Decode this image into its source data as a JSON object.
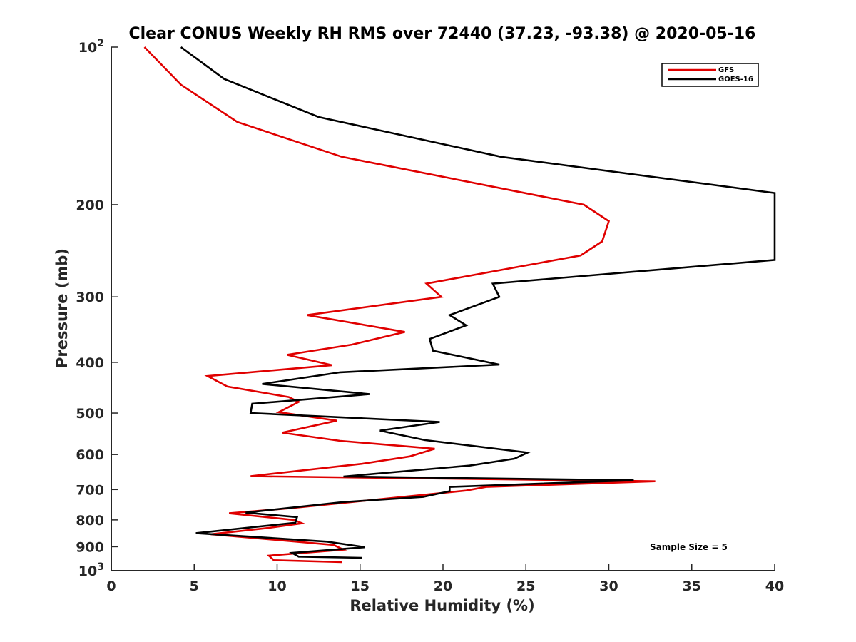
{
  "chart_data": {
    "type": "line",
    "title": "Clear CONUS Weekly RH RMS over 72440 (37.23, -93.38) @ 2020-05-16",
    "xlabel": "Relative Humidity (%)",
    "ylabel": "Pressure (mb)",
    "xlim": [
      0,
      40
    ],
    "ylim": [
      100,
      1000
    ],
    "y_scale": "log",
    "y_reversed": true,
    "grid": false,
    "legend_position": "top-right",
    "xticks": [
      "0",
      "5",
      "10",
      "15",
      "20",
      "25",
      "30",
      "35",
      "40"
    ],
    "xtick_values": [
      0,
      5,
      10,
      15,
      20,
      25,
      30,
      35,
      40
    ],
    "yticks": [
      {
        "value": 100,
        "base": "10",
        "exp": "2"
      },
      {
        "value": 200,
        "base": "200",
        "exp": ""
      },
      {
        "value": 300,
        "base": "300",
        "exp": ""
      },
      {
        "value": 400,
        "base": "400",
        "exp": ""
      },
      {
        "value": 500,
        "base": "500",
        "exp": ""
      },
      {
        "value": 600,
        "base": "600",
        "exp": ""
      },
      {
        "value": 700,
        "base": "700",
        "exp": ""
      },
      {
        "value": 800,
        "base": "800",
        "exp": ""
      },
      {
        "value": 900,
        "base": "900",
        "exp": ""
      },
      {
        "value": 1000,
        "base": "10",
        "exp": "3"
      }
    ],
    "annotation": "Sample Size = 5",
    "series": [
      {
        "name": "GFS",
        "color": "#e00000",
        "points": [
          [
            2.0,
            100
          ],
          [
            4.2,
            118
          ],
          [
            7.6,
            139
          ],
          [
            13.9,
            162
          ],
          [
            28.5,
            200
          ],
          [
            30.0,
            215
          ],
          [
            29.6,
            235
          ],
          [
            28.3,
            250
          ],
          [
            19.0,
            283
          ],
          [
            19.9,
            300
          ],
          [
            11.8,
            325
          ],
          [
            17.7,
            350
          ],
          [
            14.5,
            370
          ],
          [
            10.6,
            387
          ],
          [
            13.3,
            405
          ],
          [
            5.8,
            425
          ],
          [
            7.0,
            445
          ],
          [
            10.7,
            466
          ],
          [
            11.3,
            476
          ],
          [
            10.1,
            498
          ],
          [
            13.6,
            517
          ],
          [
            10.3,
            545
          ],
          [
            13.8,
            565
          ],
          [
            19.5,
            585
          ],
          [
            18.0,
            605
          ],
          [
            15.1,
            625
          ],
          [
            8.4,
            660
          ],
          [
            32.8,
            675
          ],
          [
            22.6,
            692
          ],
          [
            21.4,
            703
          ],
          [
            10.8,
            760
          ],
          [
            7.1,
            777
          ],
          [
            11.0,
            800
          ],
          [
            11.5,
            812
          ],
          [
            9.3,
            830
          ],
          [
            6.0,
            852
          ],
          [
            13.4,
            893
          ],
          [
            14.0,
            912
          ],
          [
            9.5,
            936
          ],
          [
            9.8,
            955
          ],
          [
            13.9,
            963
          ]
        ]
      },
      {
        "name": "GOES-16",
        "color": "#000000",
        "points": [
          [
            4.2,
            100
          ],
          [
            6.8,
            115
          ],
          [
            12.5,
            136
          ],
          [
            23.5,
            162
          ],
          [
            40.0,
            190
          ],
          [
            40.0,
            255
          ],
          [
            23.0,
            283
          ],
          [
            23.4,
            300
          ],
          [
            20.4,
            325
          ],
          [
            21.4,
            340
          ],
          [
            19.2,
            361
          ],
          [
            19.4,
            380
          ],
          [
            23.4,
            404
          ],
          [
            13.8,
            418
          ],
          [
            9.1,
            440
          ],
          [
            15.6,
            460
          ],
          [
            8.5,
            480
          ],
          [
            8.4,
            500
          ],
          [
            19.8,
            520
          ],
          [
            16.2,
            540
          ],
          [
            18.9,
            563
          ],
          [
            25.1,
            595
          ],
          [
            24.3,
            611
          ],
          [
            21.6,
            630
          ],
          [
            14.0,
            661
          ],
          [
            31.5,
            672
          ],
          [
            20.4,
            692
          ],
          [
            20.4,
            705
          ],
          [
            18.8,
            723
          ],
          [
            13.9,
            740
          ],
          [
            8.1,
            775
          ],
          [
            11.2,
            790
          ],
          [
            11.1,
            810
          ],
          [
            5.1,
            848
          ],
          [
            13.0,
            880
          ],
          [
            15.3,
            902
          ],
          [
            10.9,
            925
          ],
          [
            11.3,
            940
          ],
          [
            15.1,
            945
          ]
        ]
      }
    ]
  }
}
